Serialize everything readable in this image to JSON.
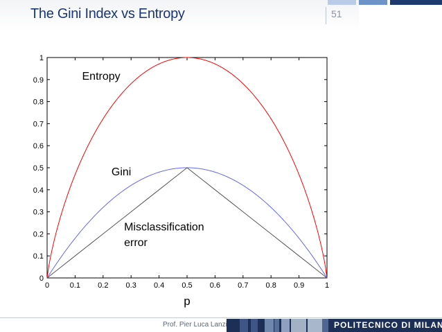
{
  "slide": {
    "title": "The Gini Index vs Entropy",
    "number": "51",
    "top_bar_colors": [
      "#b9cbe6",
      "#6e93c8",
      "#1c3a6e"
    ]
  },
  "footer": {
    "author": "Prof. Pier Luca Lanzi",
    "institution": "POLITECNICO DI MILANO",
    "bar_color": "#1c2f57",
    "block_colors": [
      "#3e5585",
      "#3e5585",
      "#6f87ad",
      "#566e98",
      "#8ea0bd",
      "#a3b1c7",
      "#a9b7cc",
      "#4f6690"
    ]
  },
  "chart_data": {
    "type": "line",
    "xlabel": "p",
    "ylabel": "",
    "xlim": [
      0,
      1
    ],
    "ylim": [
      0,
      1
    ],
    "x_ticks": [
      "0",
      "0.1",
      "0.2",
      "0.3",
      "0.4",
      "0.5",
      "0.6",
      "0.7",
      "0.8",
      "0.9",
      "1"
    ],
    "y_ticks": [
      "0",
      "0.1",
      "0.2",
      "0.3",
      "0.4",
      "0.5",
      "0.6",
      "0.7",
      "0.8",
      "0.9",
      "1"
    ],
    "grid": false,
    "x": [
      0,
      0.05,
      0.1,
      0.15,
      0.2,
      0.25,
      0.3,
      0.35,
      0.4,
      0.45,
      0.5,
      0.55,
      0.6,
      0.65,
      0.7,
      0.75,
      0.8,
      0.85,
      0.9,
      0.95,
      1
    ],
    "series": [
      {
        "name": "Entropy",
        "color": "#ff0000",
        "values": [
          0,
          0.286,
          0.469,
          0.61,
          0.722,
          0.811,
          0.881,
          0.934,
          0.971,
          0.993,
          1,
          0.993,
          0.971,
          0.934,
          0.881,
          0.811,
          0.722,
          0.61,
          0.469,
          0.286,
          0
        ]
      },
      {
        "name": "Gini",
        "color": "#6464ff",
        "values": [
          0,
          0.095,
          0.18,
          0.255,
          0.32,
          0.375,
          0.42,
          0.455,
          0.48,
          0.495,
          0.5,
          0.495,
          0.48,
          0.455,
          0.42,
          0.375,
          0.32,
          0.255,
          0.18,
          0.095,
          0
        ]
      },
      {
        "name": "Misclassification error",
        "color": "#555555",
        "values": [
          0,
          0.05,
          0.1,
          0.15,
          0.2,
          0.25,
          0.3,
          0.35,
          0.4,
          0.45,
          0.5,
          0.45,
          0.4,
          0.35,
          0.3,
          0.25,
          0.2,
          0.15,
          0.1,
          0.05,
          0
        ]
      }
    ],
    "annotations": [
      {
        "text": "Entropy",
        "x": 0.125,
        "y": 0.9
      },
      {
        "text": "Gini",
        "x": 0.23,
        "y": 0.465
      },
      {
        "text": "Misclassification",
        "x": 0.275,
        "y": 0.215
      },
      {
        "text": "error",
        "x": 0.275,
        "y": 0.145
      }
    ]
  }
}
